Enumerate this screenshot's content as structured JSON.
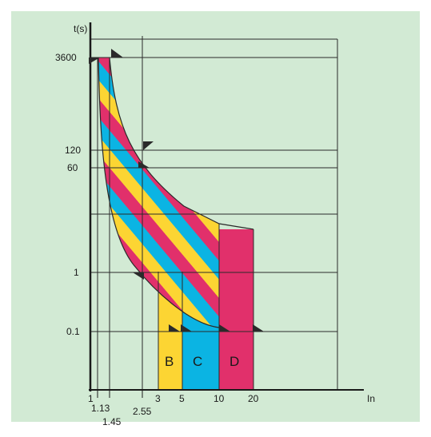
{
  "axes": {
    "y_title": "t(s)",
    "x_title": "In"
  },
  "y_ticks": [
    "3600",
    "120",
    "60",
    "1",
    "0.1"
  ],
  "x_ticks": [
    "1",
    "1.13",
    "1.45",
    "2.55",
    "3",
    "5",
    "10",
    "20"
  ],
  "curve_labels": [
    "B",
    "C",
    "D"
  ],
  "colors": {
    "background": "#d2ead4",
    "grid": "#2a2a2a",
    "yellow": "#fcd533",
    "cyan": "#0bb4e3",
    "magenta": "#e1306b"
  }
}
